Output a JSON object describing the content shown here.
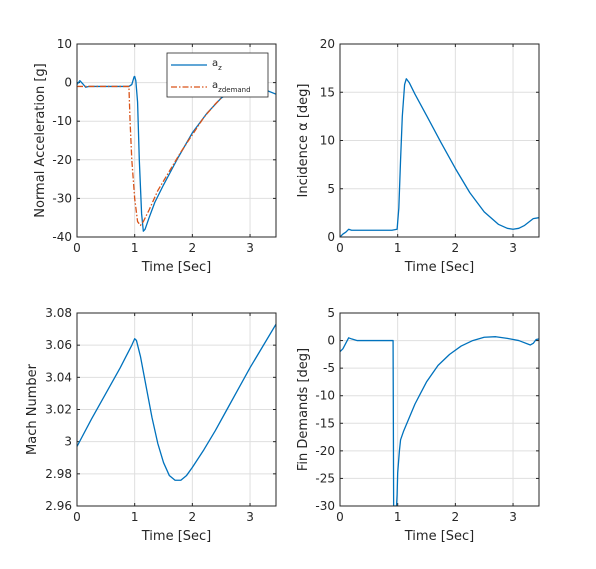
{
  "chart_data": [
    {
      "type": "line",
      "xlabel": "Time [Sec]",
      "ylabel": "Normal Acceleration [g]",
      "xlim": [
        0,
        3.45
      ],
      "ylim": [
        -40,
        10
      ],
      "xticks": [
        "0",
        "1",
        "2",
        "3"
      ],
      "yticks": [
        "-40",
        "-30",
        "-20",
        "-10",
        "0",
        "10"
      ],
      "grid": true,
      "legend_position": "top-right",
      "series": [
        {
          "name": "a_z",
          "name_main": "a",
          "name_sub": "z",
          "color": "#0072BD",
          "style": "solid",
          "x": [
            0,
            0.05,
            0.1,
            0.15,
            0.2,
            0.3,
            0.5,
            0.7,
            0.9,
            0.95,
            0.99,
            1.0,
            1.02,
            1.05,
            1.08,
            1.12,
            1.15,
            1.18,
            1.25,
            1.35,
            1.5,
            1.75,
            2.0,
            2.25,
            2.5,
            2.75,
            3.0,
            3.2,
            3.45
          ],
          "y": [
            -0.5,
            0.5,
            -0.3,
            -1.2,
            -1.0,
            -1.0,
            -1.0,
            -1.0,
            -1.0,
            -0.5,
            1.5,
            1.6,
            0.5,
            -5,
            -20,
            -34,
            -38.5,
            -38,
            -35,
            -31,
            -26.5,
            -19.5,
            -13,
            -8,
            -4,
            -1.5,
            -0.5,
            -1.5,
            -3
          ]
        },
        {
          "name": "a_zdemand",
          "name_main": "a",
          "name_sub": "zdemand",
          "color": "#D95319",
          "style": "dashdot",
          "x": [
            0,
            0.2,
            0.5,
            0.8,
            0.9,
            0.92,
            0.95,
            1.0,
            1.05,
            1.1,
            1.15,
            1.25,
            1.4,
            1.6,
            1.8,
            2.0,
            2.2,
            2.4,
            2.6,
            2.8,
            3.0
          ],
          "y": [
            -1,
            -1,
            -1,
            -1,
            -1,
            -10,
            -20,
            -30,
            -36,
            -37,
            -36,
            -33,
            -28,
            -23,
            -18,
            -13.5,
            -9,
            -5.5,
            -2.5,
            -0.5,
            0
          ]
        }
      ]
    },
    {
      "type": "line",
      "xlabel": "Time [Sec]",
      "ylabel": "Incidence α [deg]",
      "xlim": [
        0,
        3.45
      ],
      "ylim": [
        0,
        20
      ],
      "xticks": [
        "0",
        "1",
        "2",
        "3"
      ],
      "yticks": [
        "0",
        "5",
        "10",
        "15",
        "20"
      ],
      "grid": true,
      "series": [
        {
          "color": "#0072BD",
          "style": "solid",
          "x": [
            0,
            0.05,
            0.1,
            0.15,
            0.2,
            0.3,
            0.6,
            0.9,
            0.99,
            1.02,
            1.05,
            1.08,
            1.12,
            1.15,
            1.2,
            1.3,
            1.5,
            1.75,
            2.0,
            2.25,
            2.5,
            2.75,
            2.9,
            3.0,
            3.1,
            3.2,
            3.35,
            3.45
          ],
          "y": [
            0,
            0.3,
            0.5,
            0.8,
            0.7,
            0.7,
            0.7,
            0.7,
            0.8,
            3,
            8,
            12.5,
            15.8,
            16.4,
            16.0,
            14.8,
            12.6,
            9.8,
            7.1,
            4.6,
            2.6,
            1.3,
            0.9,
            0.8,
            0.9,
            1.2,
            1.9,
            2.0
          ]
        }
      ]
    },
    {
      "type": "line",
      "xlabel": "Time [Sec]",
      "ylabel": "Mach Number",
      "xlim": [
        0,
        3.45
      ],
      "ylim": [
        2.96,
        3.08
      ],
      "xticks": [
        "0",
        "1",
        "2",
        "3"
      ],
      "yticks": [
        "2.96",
        "2.98",
        "3",
        "3.02",
        "3.04",
        "3.06",
        "3.08"
      ],
      "grid": true,
      "series": [
        {
          "color": "#0072BD",
          "style": "solid",
          "x": [
            0,
            0.25,
            0.5,
            0.75,
            0.95,
            1.0,
            1.03,
            1.1,
            1.2,
            1.3,
            1.4,
            1.5,
            1.6,
            1.7,
            1.8,
            1.9,
            2.0,
            2.2,
            2.4,
            2.6,
            2.8,
            3.0,
            3.2,
            3.45
          ],
          "y": [
            2.997,
            3.014,
            3.03,
            3.046,
            3.06,
            3.064,
            3.063,
            3.053,
            3.034,
            3.015,
            2.999,
            2.987,
            2.979,
            2.976,
            2.976,
            2.979,
            2.984,
            2.995,
            3.007,
            3.02,
            3.033,
            3.046,
            3.058,
            3.073
          ]
        }
      ]
    },
    {
      "type": "line",
      "xlabel": "Time [Sec]",
      "ylabel": "Fin Demands [deg]",
      "xlim": [
        0,
        3.45
      ],
      "ylim": [
        -30,
        5
      ],
      "xticks": [
        "0",
        "1",
        "2",
        "3"
      ],
      "yticks": [
        "-30",
        "-25",
        "-20",
        "-15",
        "-10",
        "-5",
        "0",
        "5"
      ],
      "grid": true,
      "series": [
        {
          "color": "#0072BD",
          "style": "solid",
          "x": [
            0,
            0.05,
            0.1,
            0.15,
            0.2,
            0.3,
            0.6,
            0.9,
            0.92,
            0.925,
            0.93,
            0.98,
            0.99,
            1.0,
            1.03,
            1.05,
            1.1,
            1.2,
            1.3,
            1.4,
            1.5,
            1.7,
            1.9,
            2.1,
            2.3,
            2.5,
            2.7,
            2.9,
            3.1,
            3.3,
            3.35,
            3.4,
            3.45
          ],
          "y": [
            -2,
            -1.5,
            -0.5,
            0.5,
            0.3,
            0,
            0,
            0,
            0,
            -15,
            -30,
            -30,
            -28,
            -24,
            -20,
            -18,
            -16.5,
            -14,
            -11.5,
            -9.5,
            -7.5,
            -4.5,
            -2.5,
            -1.0,
            0,
            0.6,
            0.7,
            0.4,
            0,
            -0.8,
            -0.5,
            0.2,
            0.3
          ]
        }
      ]
    }
  ]
}
